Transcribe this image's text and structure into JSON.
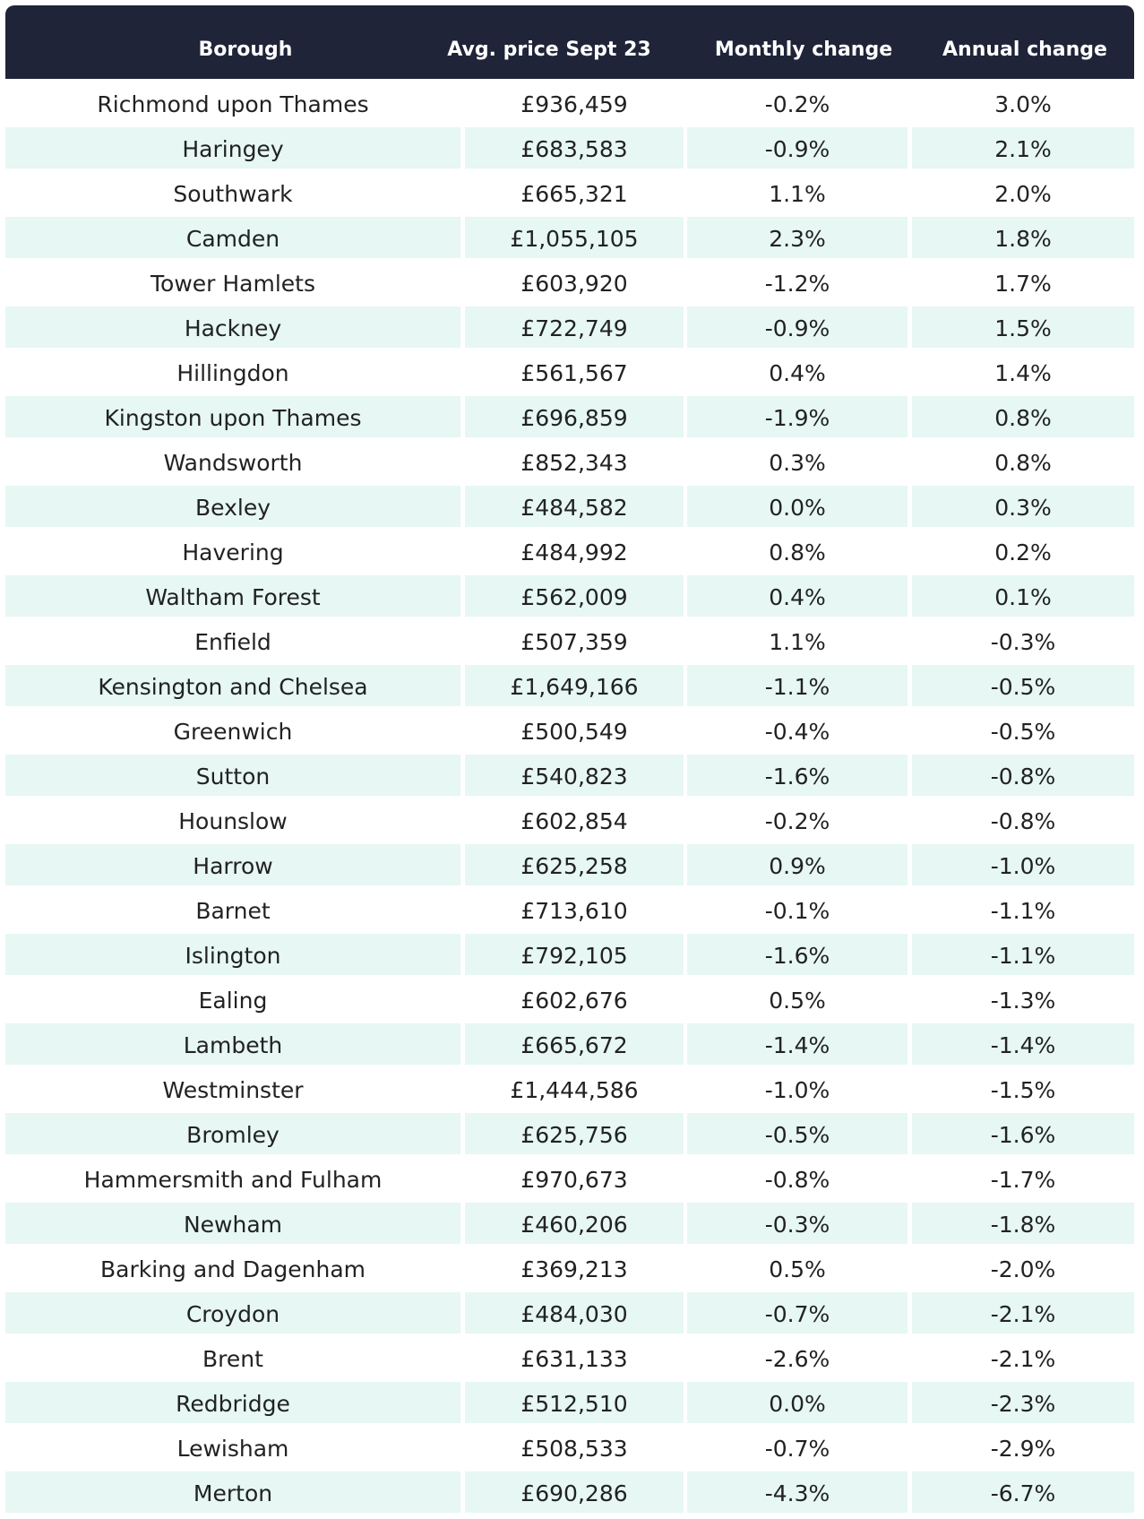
{
  "table": {
    "header": [
      "Borough",
      "Avg. price Sept 23",
      "Monthly change",
      "Annual change"
    ],
    "rows": [
      [
        "Richmond upon Thames",
        "£936,459",
        "-0.2%",
        "3.0%"
      ],
      [
        "Haringey",
        "£683,583",
        "-0.9%",
        "2.1%"
      ],
      [
        "Southwark",
        "£665,321",
        "1.1%",
        "2.0%"
      ],
      [
        "Camden",
        "£1,055,105",
        "2.3%",
        "1.8%"
      ],
      [
        "Tower Hamlets",
        "£603,920",
        "-1.2%",
        "1.7%"
      ],
      [
        "Hackney",
        "£722,749",
        "-0.9%",
        "1.5%"
      ],
      [
        "Hillingdon",
        "£561,567",
        "0.4%",
        "1.4%"
      ],
      [
        "Kingston upon Thames",
        "£696,859",
        "-1.9%",
        "0.8%"
      ],
      [
        "Wandsworth",
        "£852,343",
        "0.3%",
        "0.8%"
      ],
      [
        "Bexley",
        "£484,582",
        "0.0%",
        "0.3%"
      ],
      [
        "Havering",
        "£484,992",
        "0.8%",
        "0.2%"
      ],
      [
        "Waltham Forest",
        "£562,009",
        "0.4%",
        "0.1%"
      ],
      [
        "Enfield",
        "£507,359",
        "1.1%",
        "-0.3%"
      ],
      [
        "Kensington and Chelsea",
        "£1,649,166",
        "-1.1%",
        "-0.5%"
      ],
      [
        "Greenwich",
        "£500,549",
        "-0.4%",
        "-0.5%"
      ],
      [
        "Sutton",
        "£540,823",
        "-1.6%",
        "-0.8%"
      ],
      [
        "Hounslow",
        "£602,854",
        "-0.2%",
        "-0.8%"
      ],
      [
        "Harrow",
        "£625,258",
        "0.9%",
        "-1.0%"
      ],
      [
        "Barnet",
        "£713,610",
        "-0.1%",
        "-1.1%"
      ],
      [
        "Islington",
        "£792,105",
        "-1.6%",
        "-1.1%"
      ],
      [
        "Ealing",
        "£602,676",
        "0.5%",
        "-1.3%"
      ],
      [
        "Lambeth",
        "£665,672",
        "-1.4%",
        "-1.4%"
      ],
      [
        "Westminster",
        "£1,444,586",
        "-1.0%",
        "-1.5%"
      ],
      [
        "Bromley",
        "£625,756",
        "-0.5%",
        "-1.6%"
      ],
      [
        "Hammersmith and Fulham",
        "£970,673",
        "-0.8%",
        "-1.7%"
      ],
      [
        "Newham",
        "£460,206",
        "-0.3%",
        "-1.8%"
      ],
      [
        "Barking and Dagenham",
        "£369,213",
        "0.5%",
        "-2.0%"
      ],
      [
        "Croydon",
        "£484,030",
        "-0.7%",
        "-2.1%"
      ],
      [
        "Brent",
        "£631,133",
        "-2.6%",
        "-2.1%"
      ],
      [
        "Redbridge",
        "£512,510",
        "0.0%",
        "-2.3%"
      ],
      [
        "Lewisham",
        "£508,533",
        "-0.7%",
        "-2.9%"
      ],
      [
        "Merton",
        "£690,286",
        "-4.3%",
        "-6.7%"
      ]
    ]
  }
}
